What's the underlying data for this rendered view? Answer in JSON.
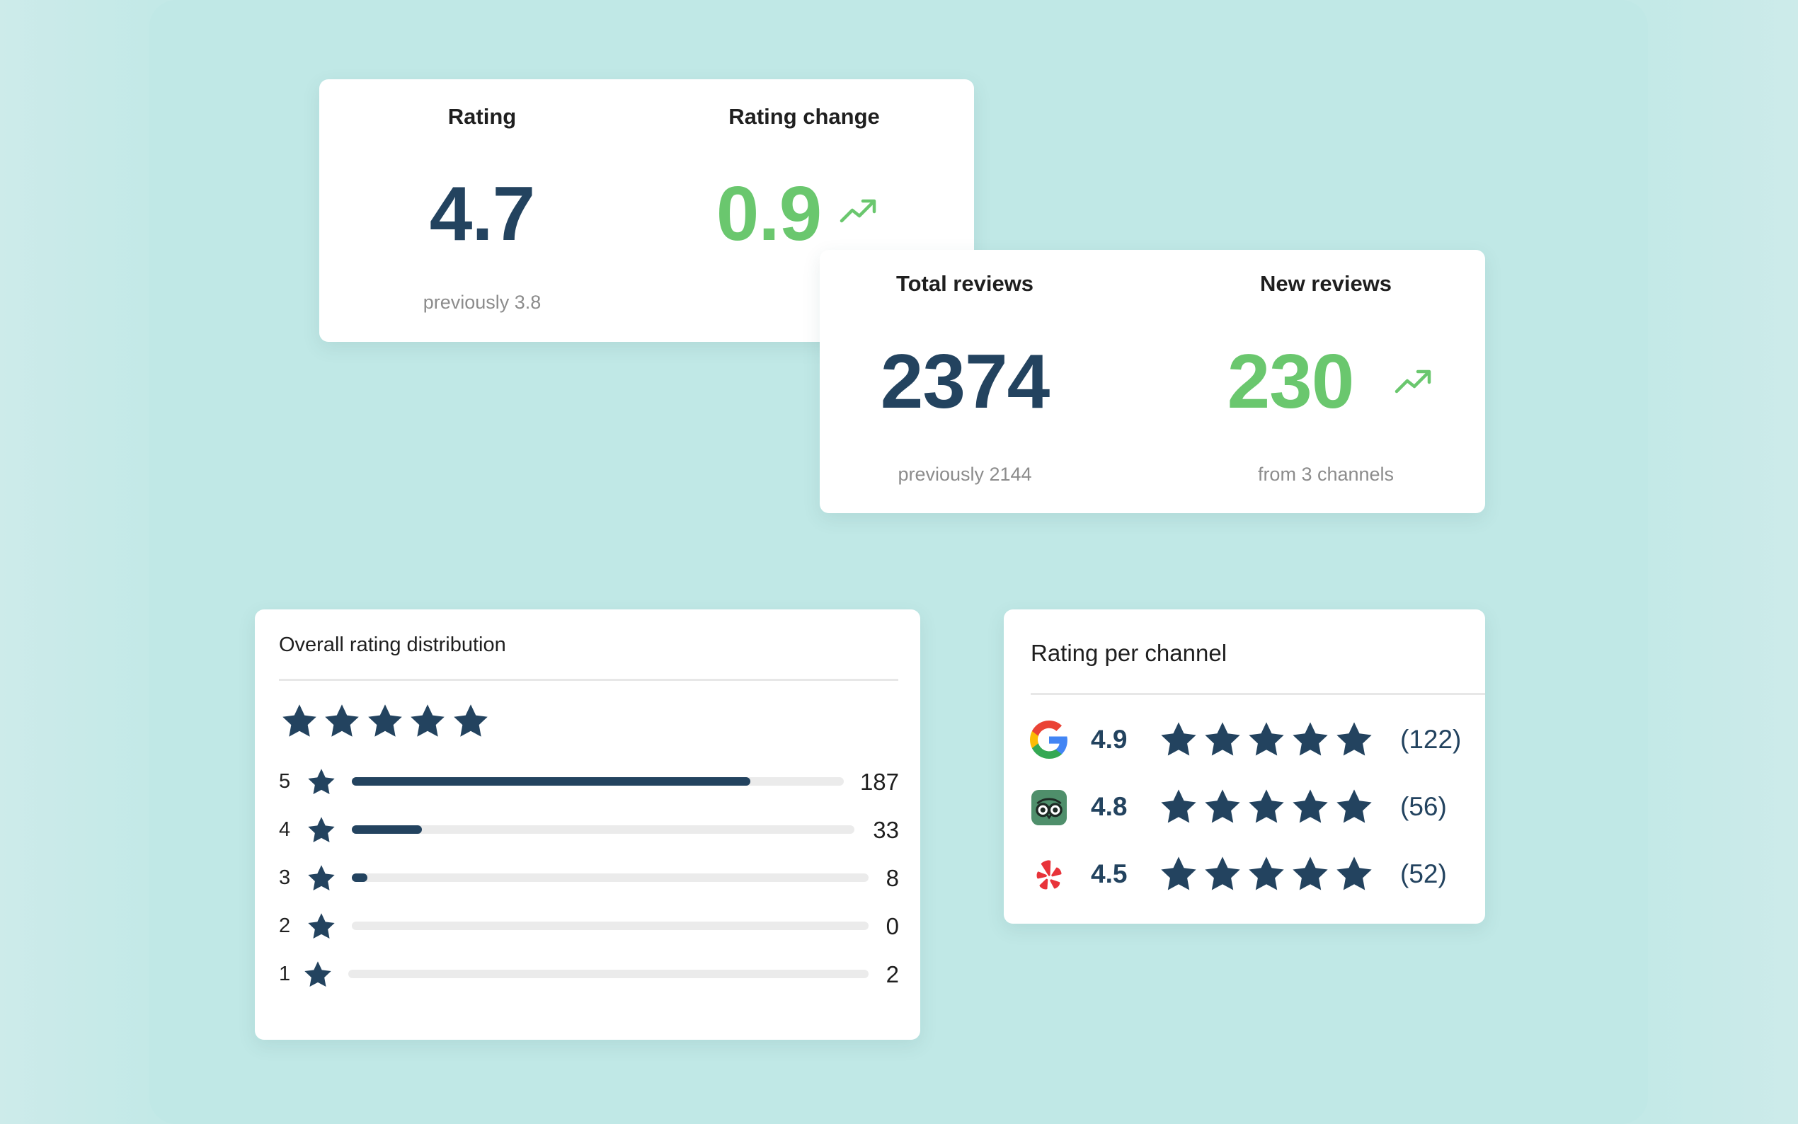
{
  "rating_card": {
    "rating_label": "Rating",
    "rating_value": "4.7",
    "rating_previous": "previously 3.8",
    "change_label": "Rating change",
    "change_value": "0.9"
  },
  "reviews_card": {
    "total_label": "Total reviews",
    "total_value": "2374",
    "total_previous": "previously 2144",
    "new_label": "New reviews",
    "new_value": "230",
    "new_sub": "from 3 channels"
  },
  "distribution": {
    "title": "Overall rating distribution",
    "summary_stars": 5,
    "rows": [
      {
        "stars": "5",
        "count": "187",
        "fraction": 0.81
      },
      {
        "stars": "4",
        "count": "33",
        "fraction": 0.14
      },
      {
        "stars": "3",
        "count": "8",
        "fraction": 0.03
      },
      {
        "stars": "2",
        "count": "0",
        "fraction": 0.0
      },
      {
        "stars": "1",
        "count": "2",
        "fraction": 0.0
      }
    ]
  },
  "channels": {
    "title": "Rating per channel",
    "items": [
      {
        "icon": "google-icon",
        "rating": "4.9",
        "count": "(122)",
        "stars": 5
      },
      {
        "icon": "tripadvisor-icon",
        "rating": "4.8",
        "count": "(56)",
        "stars": 5
      },
      {
        "icon": "yelp-icon",
        "rating": "4.5",
        "count": "(52)",
        "stars": 5
      }
    ]
  },
  "colors": {
    "background": "#c0e8e6",
    "primary": "#23435f",
    "accent_green": "#6ac76e",
    "muted": "#8c8c8c"
  }
}
